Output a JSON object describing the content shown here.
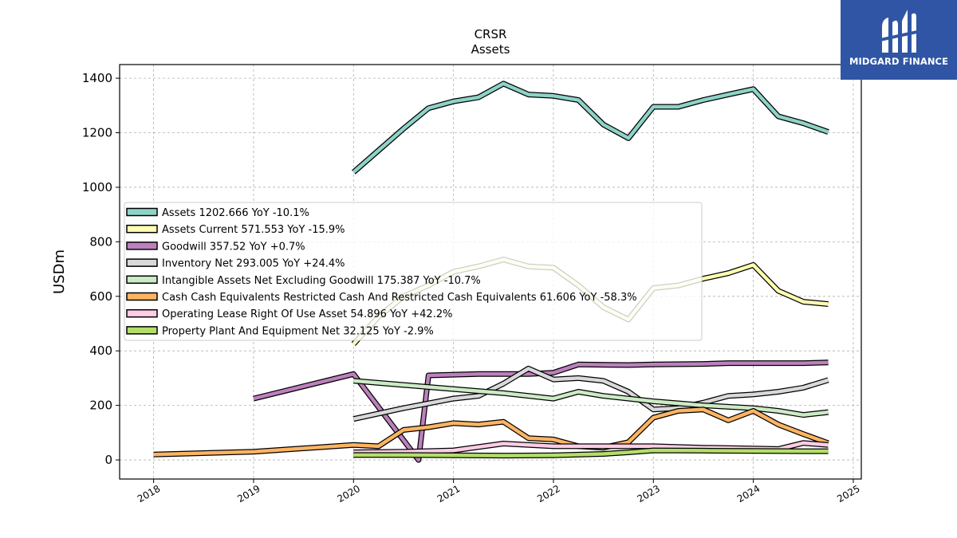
{
  "brand": {
    "name": "MIDGARD FINANCE",
    "bg_color": "#2f55a4",
    "icon": "midgard-mark-icon"
  },
  "chart_data": {
    "type": "line",
    "title": "CRSR",
    "subtitle": "Assets",
    "xlabel": "",
    "ylabel": "USDm",
    "xlim": [
      2017.66,
      2025.08
    ],
    "ylim": [
      -70,
      1450
    ],
    "x_ticks": [
      2018,
      2019,
      2020,
      2021,
      2022,
      2023,
      2024,
      2025
    ],
    "x_tick_labels": [
      "2018",
      "2019",
      "2020",
      "2021",
      "2022",
      "2023",
      "2024",
      "2025"
    ],
    "y_ticks": [
      0,
      200,
      400,
      600,
      800,
      1000,
      1200,
      1400
    ],
    "y_tick_labels": [
      "0",
      "200",
      "400",
      "600",
      "800",
      "1000",
      "1200",
      "1400"
    ],
    "grid": true,
    "legend_position": "center-left",
    "series": [
      {
        "name": "Assets",
        "label": "Assets  1202.666 YoY -10.1%",
        "color": "#8dd3c7",
        "points": [
          [
            2020.0,
            1055
          ],
          [
            2020.25,
            1135
          ],
          [
            2020.5,
            1215
          ],
          [
            2020.75,
            1290
          ],
          [
            2021.0,
            1315
          ],
          [
            2021.25,
            1330
          ],
          [
            2021.5,
            1380
          ],
          [
            2021.75,
            1340
          ],
          [
            2022.0,
            1335
          ],
          [
            2022.25,
            1320
          ],
          [
            2022.5,
            1230
          ],
          [
            2022.75,
            1180
          ],
          [
            2023.0,
            1295
          ],
          [
            2023.25,
            1295
          ],
          [
            2023.5,
            1320
          ],
          [
            2023.75,
            1340
          ],
          [
            2024.0,
            1360
          ],
          [
            2024.25,
            1260
          ],
          [
            2024.5,
            1235
          ],
          [
            2024.75,
            1202.666
          ]
        ]
      },
      {
        "name": "Assets Current",
        "label": "Assets Current  571.553 YoY -15.9%",
        "color": "#ffffb3",
        "points": [
          [
            2020.0,
            425
          ],
          [
            2020.25,
            525
          ],
          [
            2020.5,
            600
          ],
          [
            2020.75,
            640
          ],
          [
            2021.0,
            690
          ],
          [
            2021.25,
            710
          ],
          [
            2021.5,
            735
          ],
          [
            2021.75,
            710
          ],
          [
            2022.0,
            705
          ],
          [
            2022.25,
            640
          ],
          [
            2022.5,
            560
          ],
          [
            2022.75,
            515
          ],
          [
            2023.0,
            630
          ],
          [
            2023.25,
            640
          ],
          [
            2023.5,
            665
          ],
          [
            2023.75,
            685
          ],
          [
            2024.0,
            715
          ],
          [
            2024.25,
            620
          ],
          [
            2024.5,
            580
          ],
          [
            2024.75,
            571.553
          ]
        ]
      },
      {
        "name": "Goodwill",
        "label": "Goodwill  357.52 YoY +0.7%",
        "color": "#bc80bd",
        "points": [
          [
            2019.0,
            225
          ],
          [
            2020.0,
            315
          ],
          [
            2020.65,
            0
          ],
          [
            2020.75,
            310
          ],
          [
            2021.25,
            315
          ],
          [
            2021.75,
            315
          ],
          [
            2022.0,
            320
          ],
          [
            2022.25,
            350
          ],
          [
            2022.75,
            348
          ],
          [
            2023.0,
            350
          ],
          [
            2023.5,
            352
          ],
          [
            2023.75,
            355
          ],
          [
            2024.0,
            355
          ],
          [
            2024.5,
            355
          ],
          [
            2024.75,
            357.52
          ]
        ]
      },
      {
        "name": "Inventory Net",
        "label": "Inventory Net  293.005 YoY +24.4%",
        "color": "#d9d9d9",
        "points": [
          [
            2020.0,
            150
          ],
          [
            2020.5,
            190
          ],
          [
            2021.0,
            225
          ],
          [
            2021.25,
            235
          ],
          [
            2021.5,
            280
          ],
          [
            2021.75,
            335
          ],
          [
            2022.0,
            295
          ],
          [
            2022.25,
            300
          ],
          [
            2022.5,
            290
          ],
          [
            2022.75,
            250
          ],
          [
            2023.0,
            185
          ],
          [
            2023.25,
            190
          ],
          [
            2023.5,
            210
          ],
          [
            2023.75,
            235
          ],
          [
            2024.0,
            240
          ],
          [
            2024.25,
            250
          ],
          [
            2024.5,
            265
          ],
          [
            2024.75,
            293.005
          ]
        ]
      },
      {
        "name": "Intangible Assets Net Excluding Goodwill",
        "label": "Intangible Assets Net Excluding Goodwill  175.387 YoY -10.7%",
        "color": "#ccebc5",
        "points": [
          [
            2020.0,
            290
          ],
          [
            2020.5,
            275
          ],
          [
            2021.0,
            260
          ],
          [
            2021.5,
            245
          ],
          [
            2022.0,
            225
          ],
          [
            2022.25,
            250
          ],
          [
            2022.5,
            235
          ],
          [
            2023.0,
            215
          ],
          [
            2023.5,
            200
          ],
          [
            2024.0,
            190
          ],
          [
            2024.25,
            180
          ],
          [
            2024.5,
            165
          ],
          [
            2024.75,
            175.387
          ]
        ]
      },
      {
        "name": "Cash Cash Equivalents Restricted Cash And Restricted Cash Equivalents",
        "label": "Cash Cash Equivalents Restricted Cash And Restricted Cash Equivalents  61.606 YoY -58.3%",
        "color": "#fdb462",
        "points": [
          [
            2018.0,
            20
          ],
          [
            2019.0,
            30
          ],
          [
            2020.0,
            55
          ],
          [
            2020.25,
            50
          ],
          [
            2020.5,
            110
          ],
          [
            2020.75,
            120
          ],
          [
            2021.0,
            135
          ],
          [
            2021.25,
            130
          ],
          [
            2021.5,
            140
          ],
          [
            2021.75,
            80
          ],
          [
            2022.0,
            75
          ],
          [
            2022.25,
            50
          ],
          [
            2022.5,
            45
          ],
          [
            2022.75,
            65
          ],
          [
            2023.0,
            155
          ],
          [
            2023.25,
            180
          ],
          [
            2023.5,
            185
          ],
          [
            2023.75,
            145
          ],
          [
            2024.0,
            180
          ],
          [
            2024.25,
            130
          ],
          [
            2024.5,
            95
          ],
          [
            2024.75,
            61.606
          ]
        ]
      },
      {
        "name": "Operating Lease Right Of Use Asset",
        "label": "Operating Lease Right Of Use Asset  54.896 YoY +42.2%",
        "color": "#fccde5",
        "points": [
          [
            2020.0,
            28
          ],
          [
            2020.5,
            30
          ],
          [
            2021.0,
            35
          ],
          [
            2021.5,
            60
          ],
          [
            2022.0,
            50
          ],
          [
            2022.5,
            50
          ],
          [
            2023.0,
            50
          ],
          [
            2023.5,
            45
          ],
          [
            2024.0,
            42
          ],
          [
            2024.25,
            40
          ],
          [
            2024.5,
            62
          ],
          [
            2024.75,
            54.896
          ]
        ]
      },
      {
        "name": "Property Plant And Equipment Net",
        "label": "Property Plant And Equipment Net  32.125 YoY -2.9%",
        "color": "#b3de69",
        "points": [
          [
            2020.0,
            18
          ],
          [
            2020.5,
            18
          ],
          [
            2021.0,
            17
          ],
          [
            2021.5,
            16
          ],
          [
            2022.0,
            17
          ],
          [
            2022.5,
            22
          ],
          [
            2022.75,
            28
          ],
          [
            2023.0,
            35
          ],
          [
            2023.5,
            34
          ],
          [
            2024.0,
            33
          ],
          [
            2024.5,
            32
          ],
          [
            2024.75,
            32.125
          ]
        ]
      }
    ]
  }
}
